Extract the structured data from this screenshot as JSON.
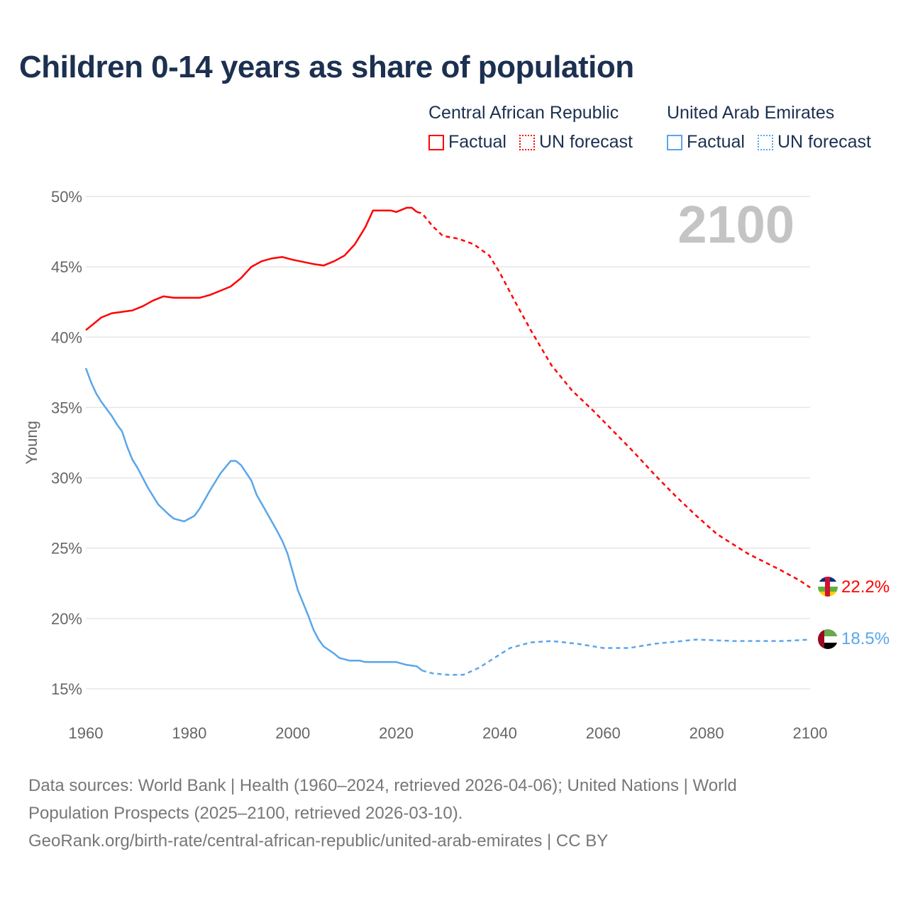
{
  "title": "Children 0-14 years as share of population",
  "legend": [
    {
      "country": "Central African Republic",
      "factual": "Factual",
      "forecast": "UN forecast",
      "color": "#ff0000"
    },
    {
      "country": "United Arab Emirates",
      "factual": "Factual",
      "forecast": "UN forecast",
      "color": "#5aa6ea"
    }
  ],
  "footer": {
    "line1": "Data sources: World Bank | Health (1960–2024, retrieved 2026-04-06); United Nations | World",
    "line2": "Population Prospects (2025–2100, retrieved 2026-03-10).",
    "line3": "GeoRank.org/birth-rate/central-african-republic/united-arab-emirates | CC BY"
  },
  "chart_data": {
    "type": "line",
    "title": "Children 0-14 years as share of population",
    "xlabel": "",
    "ylabel": "Young",
    "xlim": [
      1960,
      2100
    ],
    "ylim": [
      15,
      50
    ],
    "xticks": [
      "1960",
      "1980",
      "2000",
      "2020",
      "2040",
      "2060",
      "2080",
      "2100"
    ],
    "yticks": [
      "15%",
      "20%",
      "25%",
      "30%",
      "35%",
      "40%",
      "45%",
      "50%"
    ],
    "year_watermark": "2100",
    "grid": true,
    "legend_position": "top-right",
    "series": [
      {
        "name": "Central African Republic",
        "color": "#ff0000",
        "end_label": "22.2%",
        "factual": [
          [
            1960,
            40.5
          ],
          [
            1963,
            41.4
          ],
          [
            1965,
            41.7
          ],
          [
            1967,
            41.8
          ],
          [
            1969,
            41.9
          ],
          [
            1971,
            42.2
          ],
          [
            1973,
            42.6
          ],
          [
            1975,
            42.9
          ],
          [
            1977,
            42.8
          ],
          [
            1982,
            42.8
          ],
          [
            1984,
            43.0
          ],
          [
            1986,
            43.3
          ],
          [
            1988,
            43.6
          ],
          [
            1990,
            44.2
          ],
          [
            1992,
            45.0
          ],
          [
            1994,
            45.4
          ],
          [
            1996,
            45.6
          ],
          [
            1998,
            45.7
          ],
          [
            2000,
            45.5
          ],
          [
            2004,
            45.2
          ],
          [
            2006,
            45.1
          ],
          [
            2008,
            45.4
          ],
          [
            2010,
            45.8
          ],
          [
            2012,
            46.6
          ],
          [
            2014,
            47.8
          ],
          [
            2015.5,
            49.0
          ],
          [
            2019,
            49.0
          ],
          [
            2020,
            48.9
          ],
          [
            2022,
            49.2
          ],
          [
            2023,
            49.2
          ],
          [
            2024,
            48.9
          ]
        ],
        "forecast": [
          [
            2024,
            48.9
          ],
          [
            2025,
            48.8
          ],
          [
            2027,
            47.9
          ],
          [
            2029,
            47.2
          ],
          [
            2032,
            47.0
          ],
          [
            2035,
            46.6
          ],
          [
            2038,
            45.8
          ],
          [
            2040,
            44.6
          ],
          [
            2043,
            42.5
          ],
          [
            2046,
            40.5
          ],
          [
            2050,
            38.0
          ],
          [
            2054,
            36.2
          ],
          [
            2058,
            34.8
          ],
          [
            2062,
            33.3
          ],
          [
            2066,
            31.8
          ],
          [
            2070,
            30.2
          ],
          [
            2074,
            28.7
          ],
          [
            2078,
            27.3
          ],
          [
            2082,
            26.0
          ],
          [
            2088,
            24.6
          ],
          [
            2094,
            23.5
          ],
          [
            2098,
            22.7
          ],
          [
            2100,
            22.2
          ]
        ]
      },
      {
        "name": "United Arab Emirates",
        "color": "#5aa6ea",
        "end_label": "18.5%",
        "factual": [
          [
            1960,
            37.8
          ],
          [
            1961,
            36.8
          ],
          [
            1962,
            36.0
          ],
          [
            1963,
            35.4
          ],
          [
            1965,
            34.4
          ],
          [
            1966,
            33.8
          ],
          [
            1967,
            33.3
          ],
          [
            1968,
            32.2
          ],
          [
            1969,
            31.3
          ],
          [
            1970,
            30.7
          ],
          [
            1972,
            29.3
          ],
          [
            1974,
            28.1
          ],
          [
            1976,
            27.4
          ],
          [
            1977,
            27.1
          ],
          [
            1979,
            26.9
          ],
          [
            1981,
            27.3
          ],
          [
            1982,
            27.8
          ],
          [
            1984,
            29.1
          ],
          [
            1986,
            30.3
          ],
          [
            1988,
            31.2
          ],
          [
            1989,
            31.2
          ],
          [
            1990,
            30.9
          ],
          [
            1992,
            29.8
          ],
          [
            1993,
            28.8
          ],
          [
            1995,
            27.5
          ],
          [
            1997,
            26.2
          ],
          [
            1998,
            25.5
          ],
          [
            1999,
            24.6
          ],
          [
            2000,
            23.3
          ],
          [
            2001,
            22.0
          ],
          [
            2003,
            20.2
          ],
          [
            2004,
            19.2
          ],
          [
            2005,
            18.5
          ],
          [
            2006,
            18.0
          ],
          [
            2008,
            17.5
          ],
          [
            2009,
            17.2
          ],
          [
            2011,
            17.0
          ],
          [
            2013,
            17.0
          ],
          [
            2014,
            16.9
          ],
          [
            2017,
            16.9
          ],
          [
            2020,
            16.9
          ],
          [
            2022,
            16.7
          ],
          [
            2024,
            16.6
          ],
          [
            2025,
            16.3
          ]
        ],
        "forecast": [
          [
            2025,
            16.3
          ],
          [
            2027,
            16.1
          ],
          [
            2030,
            16.0
          ],
          [
            2033,
            16.0
          ],
          [
            2036,
            16.5
          ],
          [
            2039,
            17.2
          ],
          [
            2042,
            17.9
          ],
          [
            2046,
            18.3
          ],
          [
            2050,
            18.4
          ],
          [
            2055,
            18.2
          ],
          [
            2060,
            17.9
          ],
          [
            2065,
            17.9
          ],
          [
            2070,
            18.2
          ],
          [
            2078,
            18.5
          ],
          [
            2085,
            18.4
          ],
          [
            2095,
            18.4
          ],
          [
            2100,
            18.5
          ]
        ]
      }
    ]
  }
}
